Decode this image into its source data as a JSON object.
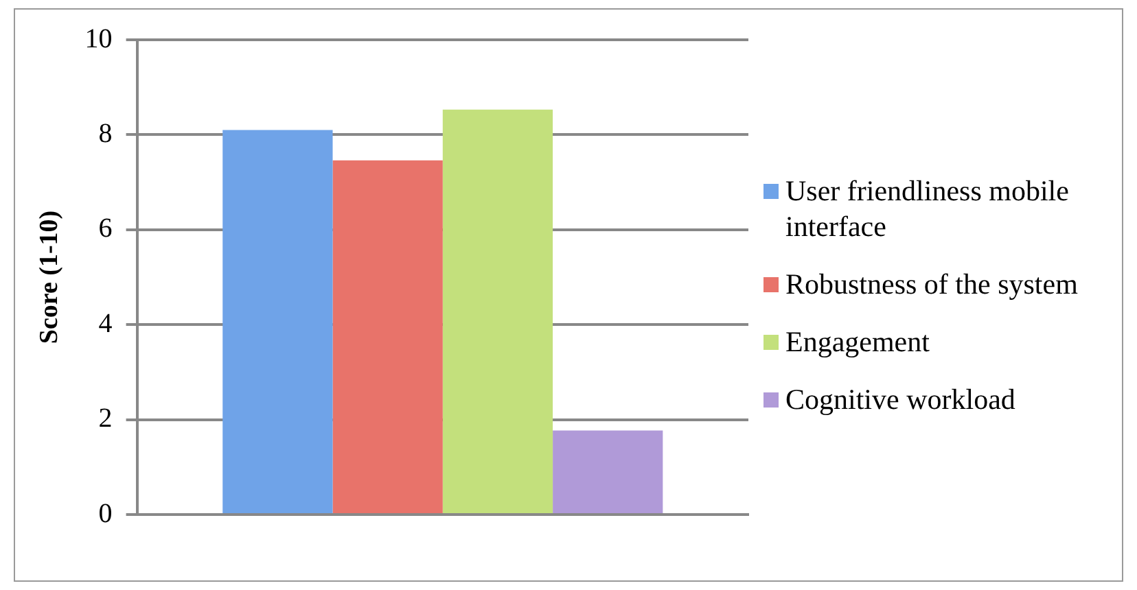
{
  "chart_data": {
    "type": "bar",
    "ylabel": "Score (1-10)",
    "categories": [
      null
    ],
    "series": [
      {
        "name": "User friendliness mobile interface",
        "color": "#6fa3e8",
        "values": [
          8.1
        ]
      },
      {
        "name": "Robustness of the system",
        "color": "#e8736a",
        "values": [
          7.46
        ]
      },
      {
        "name": "Engagement",
        "color": "#c3e07c",
        "values": [
          8.53
        ]
      },
      {
        "name": "Cognitive workload",
        "color": "#b09ad8",
        "values": [
          1.77
        ]
      }
    ],
    "ylim": [
      0,
      10
    ],
    "yticks": [
      0,
      2,
      4,
      6,
      8,
      10
    ],
    "grid": "y",
    "legend": "right"
  }
}
